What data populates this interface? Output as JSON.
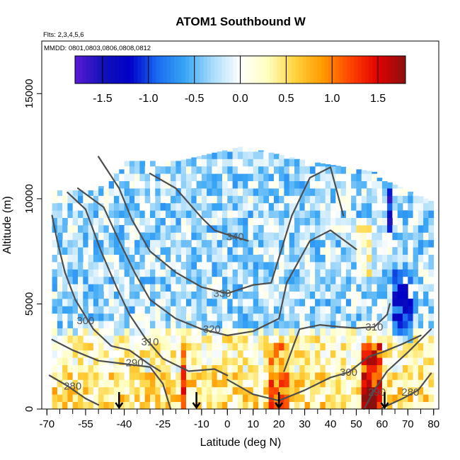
{
  "chart_data": {
    "type": "heatmap",
    "title": "ATOM1 Southbound W",
    "subtitle_flights": "Flts: 2,3,4,5,6",
    "subtitle_dates": "MMDD: 0801,0803,0806,0808,0812",
    "xlabel": "Latitude (deg N)",
    "ylabel": "Altitude (m)",
    "xlim": [
      -72,
      82
    ],
    "ylim": [
      0,
      17500
    ],
    "x_tick_labels": [
      "-70",
      "-55",
      "-40",
      "-25",
      "-10",
      "0",
      "10",
      "20",
      "30",
      "40",
      "50",
      "60",
      "70",
      "80"
    ],
    "x_tick_values": [
      -70,
      -55,
      -40,
      -25,
      -10,
      0,
      10,
      20,
      30,
      40,
      50,
      60,
      70,
      80
    ],
    "y_tick_labels": [
      "0",
      "5000",
      "10000",
      "15000"
    ],
    "y_tick_values": [
      0,
      5000,
      10000,
      15000
    ],
    "colorbar": {
      "range": [
        -1.8,
        1.8
      ],
      "tick_labels": [
        "-1.5",
        "-1.0",
        "-0.5",
        "0.0",
        "0.5",
        "1.0",
        "1.5"
      ],
      "tick_values": [
        -1.5,
        -1.0,
        -0.5,
        0.0,
        0.5,
        1.0,
        1.5
      ],
      "colors": [
        "#5a1ad6",
        "#1212b8",
        "#0000c8",
        "#1a6cf0",
        "#39a6f5",
        "#a9dcfa",
        "#ffffff",
        "#ffffc0",
        "#ffd23c",
        "#ff9900",
        "#ff4400",
        "#e20000",
        "#8a1010"
      ]
    },
    "contours": [
      {
        "label": "280",
        "label_at": [
          -60,
          1100
        ],
        "points": [
          [
            -69,
            1600
          ],
          [
            -62,
            1100
          ],
          [
            -55,
            500
          ],
          [
            -50,
            200
          ]
        ]
      },
      {
        "label": "280",
        "label_at": [
          71,
          800
        ],
        "points": [
          [
            60,
            50
          ],
          [
            68,
            500
          ],
          [
            74,
            900
          ],
          [
            79,
            1700
          ]
        ]
      },
      {
        "label": "290",
        "label_at": [
          -36,
          2200
        ],
        "points": [
          [
            -68,
            3300
          ],
          [
            -60,
            2800
          ],
          [
            -50,
            2300
          ],
          [
            -40,
            2150
          ],
          [
            -30,
            2000
          ],
          [
            -25,
            1200
          ],
          [
            -22,
            0
          ]
        ]
      },
      {
        "label": "290",
        "label_at": [
          58,
          800
        ],
        "points": [
          [
            53,
            0
          ],
          [
            57,
            900
          ],
          [
            62,
            1800
          ],
          [
            70,
            2700
          ],
          [
            79,
            3800
          ]
        ]
      },
      {
        "label": "300",
        "label_at": [
          -55,
          4200
        ],
        "points": [
          [
            -68,
            9200
          ],
          [
            -66,
            8000
          ],
          [
            -63,
            6500
          ],
          [
            -59,
            5200
          ],
          [
            -52,
            3800
          ],
          [
            -45,
            3000
          ],
          [
            -38,
            2800
          ],
          [
            -30,
            2100
          ],
          [
            -26,
            1800
          ]
        ]
      },
      {
        "label": "300",
        "label_at": [
          47,
          1750
        ],
        "points": [
          [
            0,
            1400
          ],
          [
            10,
            700
          ],
          [
            20,
            400
          ],
          [
            30,
            900
          ],
          [
            40,
            1500
          ],
          [
            47,
            1750
          ],
          [
            55,
            2500
          ],
          [
            60,
            2700
          ],
          [
            68,
            3100
          ],
          [
            75,
            3500
          ]
        ]
      },
      {
        "label": "310",
        "label_at": [
          57,
          3900
        ],
        "points": [
          [
            22,
            1800
          ],
          [
            28,
            3800
          ],
          [
            36,
            4000
          ],
          [
            44,
            3900
          ],
          [
            50,
            3850
          ],
          [
            57,
            3900
          ],
          [
            62,
            4500
          ],
          [
            63,
            5000
          ]
        ]
      },
      {
        "label": "310",
        "label_at": [
          -30,
          3200
        ],
        "points": [
          [
            -62,
            10300
          ],
          [
            -55,
            9500
          ],
          [
            -49,
            7500
          ],
          [
            -43,
            5800
          ],
          [
            -38,
            4500
          ],
          [
            -32,
            3400
          ],
          [
            -25,
            2400
          ],
          [
            -15,
            1800
          ],
          [
            -5,
            1900
          ],
          [
            0,
            1600
          ]
        ]
      },
      {
        "label": "320",
        "label_at": [
          -6,
          3800
        ],
        "points": [
          [
            -58,
            10500
          ],
          [
            -48,
            9600
          ],
          [
            -42,
            8000
          ],
          [
            -36,
            6500
          ],
          [
            -30,
            5200
          ],
          [
            -20,
            4300
          ],
          [
            -10,
            3800
          ],
          [
            0,
            3500
          ],
          [
            10,
            3700
          ],
          [
            20,
            4300
          ],
          [
            23,
            6000
          ],
          [
            32,
            8000
          ],
          [
            40,
            8500
          ],
          [
            50,
            7600
          ]
        ]
      },
      {
        "label": "330",
        "label_at": [
          -2,
          5500
        ],
        "points": [
          [
            -50,
            12000
          ],
          [
            -42,
            10500
          ],
          [
            -37,
            9000
          ],
          [
            -30,
            7500
          ],
          [
            -20,
            6500
          ],
          [
            -10,
            5800
          ],
          [
            0,
            5500
          ],
          [
            10,
            5900
          ],
          [
            17,
            6000
          ],
          [
            25,
            9200
          ],
          [
            32,
            11000
          ],
          [
            40,
            11500
          ],
          [
            45,
            9200
          ]
        ]
      },
      {
        "label": "340",
        "label_at": [
          3,
          8200
        ],
        "points": [
          [
            -30,
            11200
          ],
          [
            -20,
            10500
          ],
          [
            -10,
            9100
          ],
          [
            -5,
            8500
          ],
          [
            0,
            8300
          ],
          [
            8,
            8000
          ]
        ]
      }
    ],
    "flight_markers_lat": [
      -42,
      -12,
      20,
      61
    ]
  }
}
